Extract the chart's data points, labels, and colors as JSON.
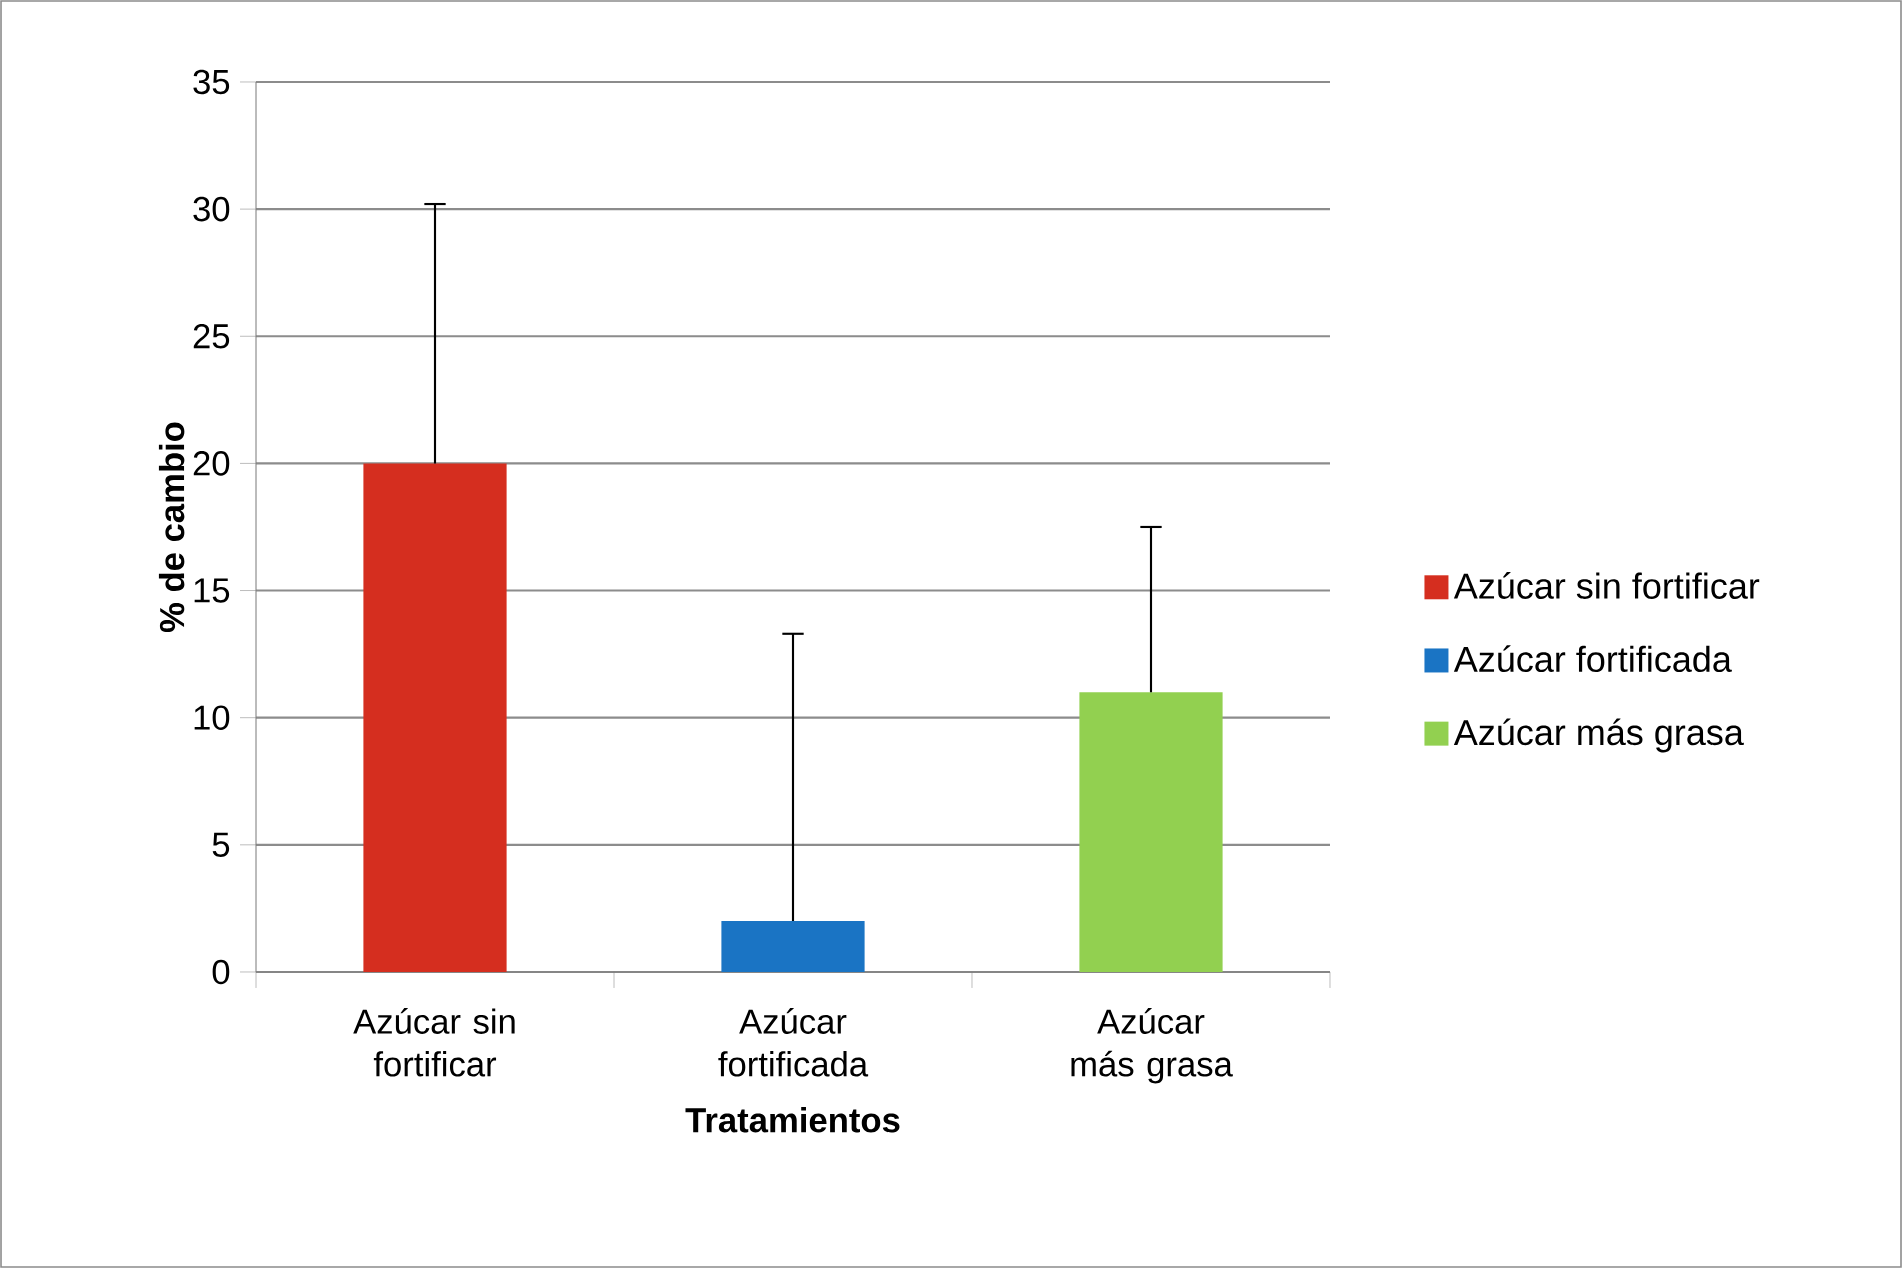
{
  "chart_data": {
    "type": "bar",
    "xlabel": "Tratamientos",
    "ylabel": "% de cambio",
    "categories": [
      "Azúcar sin fortificar",
      "Azúcar fortificada",
      "Azúcar más grasa"
    ],
    "series": [
      {
        "name": "Azúcar sin fortificar",
        "color": "#d52e1f",
        "values": [
          20,
          null,
          null
        ],
        "errors": [
          [
            20,
            30.2
          ],
          null,
          null
        ]
      },
      {
        "name": "Azúcar fortificada",
        "color": "#1a74c4",
        "values": [
          null,
          2,
          null
        ],
        "errors": [
          null,
          [
            2,
            13.3
          ],
          null
        ]
      },
      {
        "name": "Azúcar más grasa",
        "color": "#92d050",
        "values": [
          null,
          null,
          11
        ],
        "errors": [
          null,
          null,
          [
            11,
            17.5
          ]
        ]
      }
    ],
    "ylim": [
      0,
      35
    ],
    "yticks": [
      0,
      5,
      10,
      15,
      20,
      25,
      30,
      35
    ],
    "grid": "y",
    "legend": "right"
  }
}
